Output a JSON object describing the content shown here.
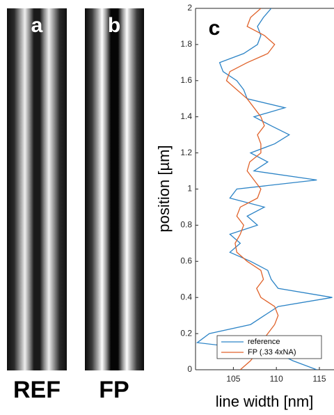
{
  "panels": [
    {
      "label": "a",
      "caption": "REF"
    },
    {
      "label": "b",
      "caption": "FP"
    }
  ],
  "chart_data": {
    "type": "line",
    "title": "c",
    "xlabel": "line width [nm]",
    "ylabel": "position [µm]",
    "x": [
      0,
      0.05,
      0.1,
      0.15,
      0.2,
      0.25,
      0.3,
      0.35,
      0.4,
      0.45,
      0.5,
      0.55,
      0.6,
      0.65,
      0.7,
      0.75,
      0.8,
      0.85,
      0.9,
      0.95,
      1.0,
      1.05,
      1.1,
      1.15,
      1.2,
      1.25,
      1.3,
      1.35,
      1.4,
      1.45,
      1.5,
      1.55,
      1.6,
      1.65,
      1.7,
      1.75,
      1.8,
      1.85,
      1.9,
      1.95,
      2.0
    ],
    "series": [
      {
        "name": "reference",
        "color": "#2b83c6",
        "values": [
          114.7,
          111.9,
          109.8,
          100.8,
          102.2,
          107,
          108.6,
          110.2,
          116.5,
          110.2,
          109.4,
          109,
          107,
          104.6,
          105.8,
          104.6,
          107.8,
          106.6,
          108.6,
          104.6,
          105.4,
          114.7,
          107.4,
          109,
          107,
          109.8,
          111.5,
          109.4,
          107.4,
          111,
          106.6,
          106.2,
          105.4,
          103.8,
          103.4,
          106.2,
          107.8,
          108.2,
          107.8,
          108.5,
          109.4
        ]
      },
      {
        "name": "FP (.33 4xNA)",
        "color": "#e0622a",
        "values": [
          105.8,
          107,
          107.8,
          108.2,
          109,
          109.8,
          110.2,
          109.8,
          108.2,
          107.7,
          108.5,
          108.2,
          106.6,
          105.4,
          105.2,
          105.8,
          106.2,
          105.4,
          105.8,
          107.8,
          108.2,
          107.4,
          106.6,
          106.9,
          108.2,
          108.2,
          107.8,
          108.6,
          108.2,
          107.4,
          106.6,
          105.4,
          104.2,
          104.6,
          106.6,
          109,
          109.8,
          108.6,
          106.6,
          107,
          108.2
        ]
      }
    ],
    "xlim": [
      100.6,
      116.7
    ],
    "xticks": [
      105,
      110,
      115
    ],
    "ylim": [
      0,
      2
    ],
    "yticks": [
      0,
      0.2,
      0.4,
      0.6,
      0.8,
      1,
      1.2,
      1.4,
      1.6,
      1.8,
      2
    ],
    "legend": "lower right"
  }
}
